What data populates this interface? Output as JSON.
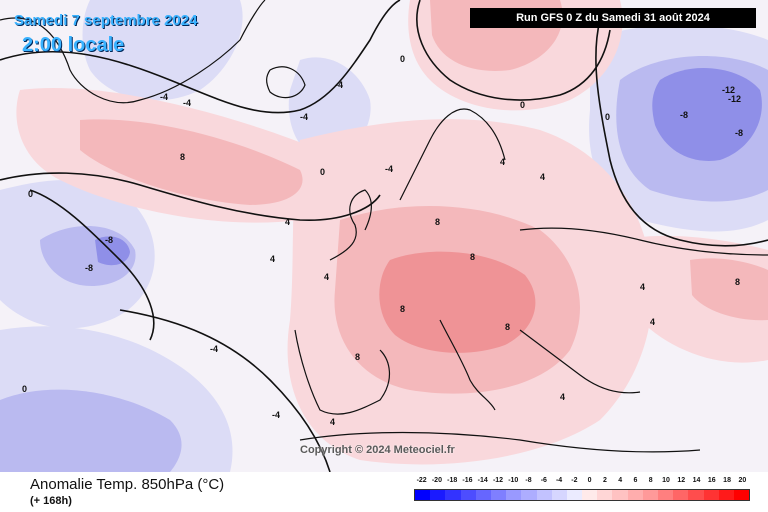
{
  "map": {
    "date_label": "Samedi 7 septembre 2024",
    "time_label": "2:00 locale",
    "run_label": "Run GFS 0 Z du Samedi 31 août 2024",
    "copyright": "Copyright © 2024 Meteociel.fr",
    "contour_labels": [
      {
        "text": "-4"
      },
      {
        "text": "-4"
      },
      {
        "text": "-4"
      },
      {
        "text": "-4"
      },
      {
        "text": "-4"
      },
      {
        "text": "0"
      },
      {
        "text": "0"
      },
      {
        "text": "0"
      },
      {
        "text": "4"
      },
      {
        "text": "4"
      },
      {
        "text": "4"
      },
      {
        "text": "4"
      },
      {
        "text": "4"
      },
      {
        "text": "8"
      },
      {
        "text": "8"
      },
      {
        "text": "8"
      },
      {
        "text": "8"
      },
      {
        "text": "8"
      },
      {
        "text": "8"
      },
      {
        "text": "-8"
      },
      {
        "text": "-8"
      },
      {
        "text": "-8"
      },
      {
        "text": "-8"
      },
      {
        "text": "-12"
      },
      {
        "text": "-12"
      },
      {
        "text": "0"
      },
      {
        "text": "4"
      },
      {
        "text": "4"
      },
      {
        "text": "-4"
      },
      {
        "text": "0"
      },
      {
        "text": "4"
      },
      {
        "text": "8"
      },
      {
        "text": "-4"
      },
      {
        "text": "4"
      },
      {
        "text": "0"
      }
    ]
  },
  "footer": {
    "title": "Anomalie Temp. 850hPa (°C)",
    "subtitle": "(+ 168h)"
  },
  "legend": {
    "labels": [
      "-22",
      "-20",
      "-18",
      "-16",
      "-14",
      "-12",
      "-10",
      "-8",
      "-6",
      "-4",
      "-2",
      "0",
      "2",
      "4",
      "6",
      "8",
      "10",
      "12",
      "14",
      "16",
      "18",
      "20"
    ],
    "colors": [
      "#0000ff",
      "#1a1aff",
      "#3333ff",
      "#4d4dff",
      "#6666ff",
      "#7f7fff",
      "#9999ff",
      "#adadff",
      "#c2c2ff",
      "#d6d6ff",
      "#ebebff",
      "#ffeaea",
      "#ffd6d6",
      "#ffc2c2",
      "#ffadad",
      "#ff9999",
      "#ff7f7f",
      "#ff6666",
      "#ff4d4d",
      "#ff3333",
      "#ff1a1a",
      "#ff0000"
    ]
  },
  "colors": {
    "neutral": "#f5f2f8",
    "warm_light": "#f9d8dc",
    "warm_mid": "#f4b8bb",
    "warm_strong": "#ef9396",
    "cold_light": "#dcdcf6",
    "cold_mid": "#babaf0",
    "cold_strong": "#8f8fe8"
  }
}
